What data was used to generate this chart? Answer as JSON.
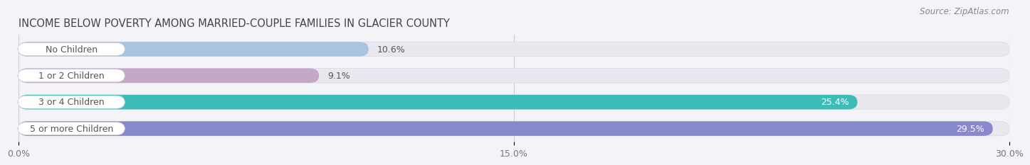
{
  "title": "INCOME BELOW POVERTY AMONG MARRIED-COUPLE FAMILIES IN GLACIER COUNTY",
  "source": "Source: ZipAtlas.com",
  "categories": [
    "No Children",
    "1 or 2 Children",
    "3 or 4 Children",
    "5 or more Children"
  ],
  "values": [
    10.6,
    9.1,
    25.4,
    29.5
  ],
  "bar_colors": [
    "#a8c4e0",
    "#c4a8c8",
    "#3dbdb8",
    "#8888cc"
  ],
  "value_colors_inside": [
    false,
    false,
    true,
    true
  ],
  "xlim": [
    0,
    30.0
  ],
  "xticks": [
    0.0,
    15.0,
    30.0
  ],
  "xtick_labels": [
    "0.0%",
    "15.0%",
    "30.0%"
  ],
  "background_color": "#f4f4f8",
  "bar_bg_color": "#e8e8ee",
  "title_fontsize": 10.5,
  "source_fontsize": 8.5,
  "label_fontsize": 9,
  "value_fontsize": 9,
  "tick_fontsize": 9
}
